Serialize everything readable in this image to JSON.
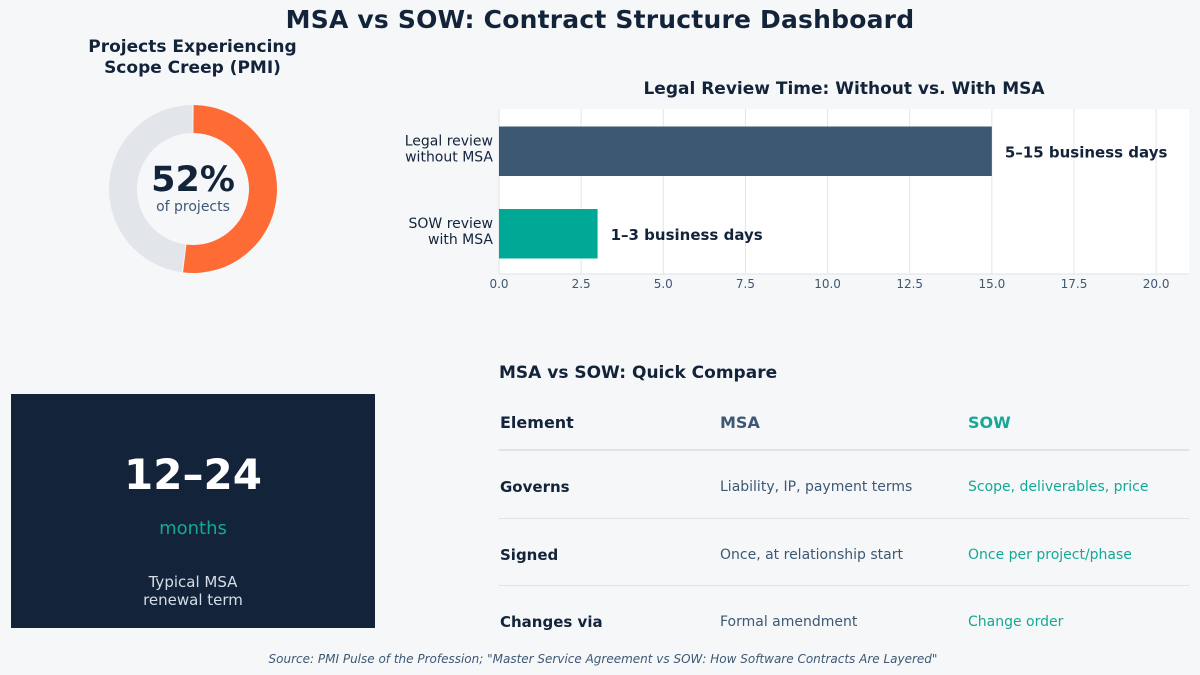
{
  "title": "MSA vs SOW: Contract Structure Dashboard",
  "colors": {
    "navy": "#13243a",
    "slate": "#3d5873",
    "orange": "#ff6b35",
    "teal": "#00a896",
    "grey": "#e2e5ea"
  },
  "scope_creep": {
    "title_line1": "Projects Experiencing",
    "title_line2": "Scope Creep (PMI)",
    "value_text": "52%",
    "caption": "of projects"
  },
  "kpi": {
    "value": "12–24",
    "unit": "months",
    "label_line1": "Typical MSA",
    "label_line2": "renewal term"
  },
  "compare": {
    "title": "MSA vs SOW: Quick Compare",
    "headers": [
      "Element",
      "MSA",
      "SOW"
    ],
    "rows": [
      {
        "element": "Governs",
        "msa": "Liability, IP, payment terms",
        "sow": "Scope, deliverables, price"
      },
      {
        "element": "Signed",
        "msa": "Once, at relationship start",
        "sow": "Once per project/phase"
      },
      {
        "element": "Changes via",
        "msa": "Formal amendment",
        "sow": "Change order"
      }
    ]
  },
  "source": "Source: PMI Pulse of the Profession; \"Master Service Agreement vs SOW: How Software Contracts Are Layered\"",
  "chart_data": [
    {
      "type": "pie",
      "variant": "donut",
      "title": "Projects Experiencing Scope Creep (PMI)",
      "categories": [
        "Scope creep",
        "Other"
      ],
      "values": [
        52,
        48
      ],
      "colors": [
        "#ff6b35",
        "#e2e5ea"
      ]
    },
    {
      "type": "bar",
      "orientation": "horizontal",
      "title": "Legal Review Time: Without vs. With MSA",
      "categories": [
        [
          "Legal review",
          "without MSA"
        ],
        [
          "SOW review",
          "with MSA"
        ]
      ],
      "values": [
        15,
        3
      ],
      "labels": [
        "5–15 business days",
        "1–3 business days"
      ],
      "colors": [
        "#3d5873",
        "#00a896"
      ],
      "xlim": [
        0,
        21
      ],
      "xticks": [
        "0.0",
        "2.5",
        "5.0",
        "7.5",
        "10.0",
        "12.5",
        "15.0",
        "17.5",
        "20.0"
      ],
      "grid": true
    }
  ]
}
